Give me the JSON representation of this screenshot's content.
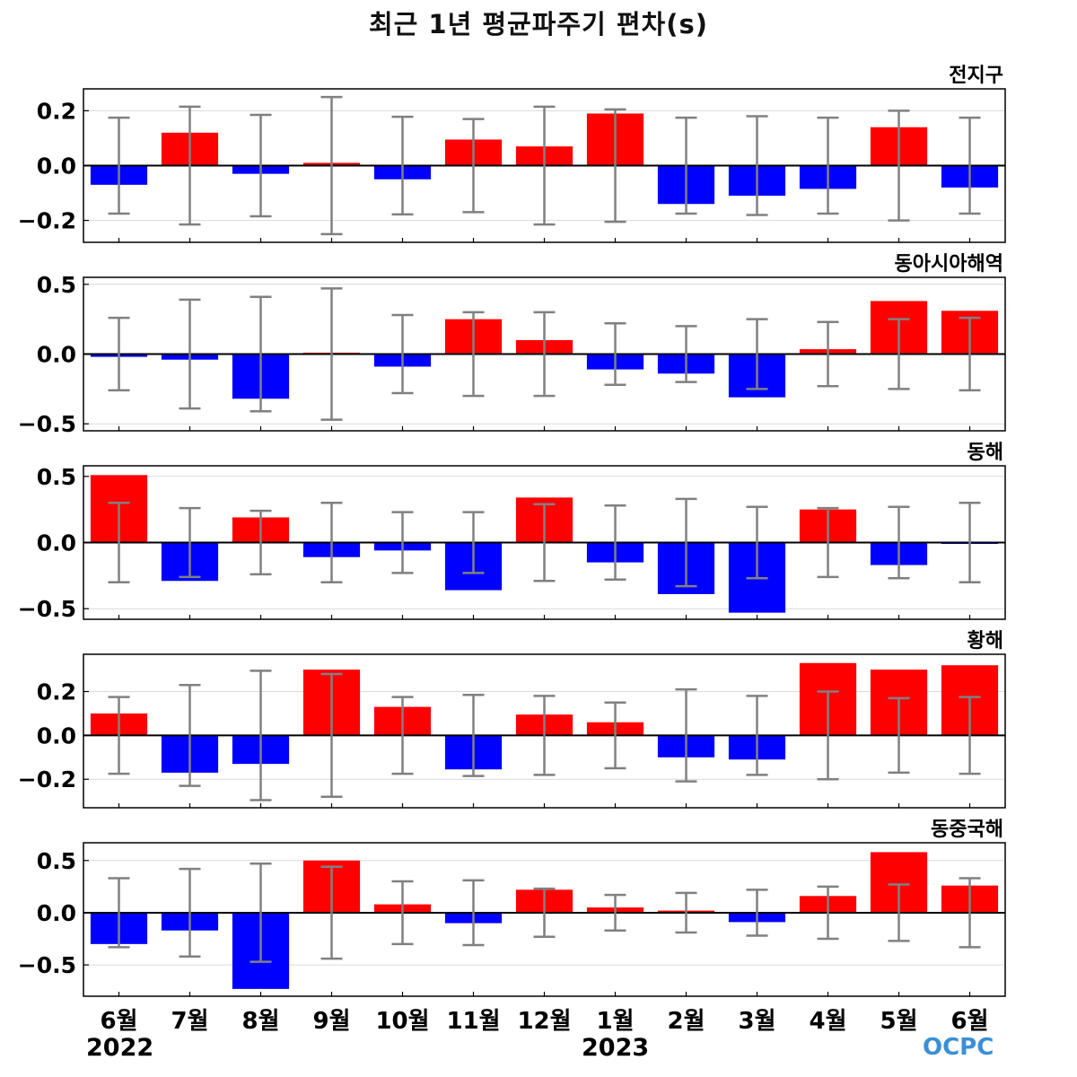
{
  "title": "최근 1년 평균파주기 편차(s)",
  "year_labels": [
    "2022",
    "2023"
  ],
  "logo_text": "OCPC",
  "colors": {
    "positive": "#ff0000",
    "negative": "#0000ff",
    "errorbar": "#808080",
    "grid": "#d9d9d9",
    "zero": "#000000"
  },
  "chart_data": [
    {
      "type": "bar",
      "title": "전지구",
      "categories": [
        "6월",
        "7월",
        "8월",
        "9월",
        "10월",
        "11월",
        "12월",
        "1월",
        "2월",
        "3월",
        "4월",
        "5월",
        "6월"
      ],
      "values": [
        -0.07,
        0.12,
        -0.03,
        0.01,
        -0.05,
        0.095,
        0.07,
        0.19,
        -0.14,
        -0.11,
        -0.085,
        0.14,
        -0.08
      ],
      "error": [
        0.175,
        0.215,
        0.185,
        0.25,
        0.178,
        0.17,
        0.215,
        0.205,
        0.175,
        0.18,
        0.175,
        0.2,
        0.175
      ],
      "ylim": [
        -0.28,
        0.28
      ],
      "yticks": [
        0.2,
        0.0,
        -0.2
      ],
      "yticklabels": [
        "0.2",
        "0.0",
        "−0.2"
      ]
    },
    {
      "type": "bar",
      "title": "동아시아해역",
      "categories": [
        "6월",
        "7월",
        "8월",
        "9월",
        "10월",
        "11월",
        "12월",
        "1월",
        "2월",
        "3월",
        "4월",
        "5월",
        "6월"
      ],
      "values": [
        -0.02,
        -0.04,
        -0.32,
        0.01,
        -0.09,
        0.25,
        0.1,
        -0.11,
        -0.14,
        -0.31,
        0.035,
        0.38,
        0.31
      ],
      "error": [
        0.26,
        0.39,
        0.41,
        0.47,
        0.28,
        0.3,
        0.3,
        0.22,
        0.2,
        0.25,
        0.23,
        0.25,
        0.26
      ],
      "ylim": [
        -0.55,
        0.55
      ],
      "yticks": [
        0.5,
        0.0,
        -0.5
      ],
      "yticklabels": [
        "0.5",
        "0.0",
        "−0.5"
      ]
    },
    {
      "type": "bar",
      "title": "동해",
      "categories": [
        "6월",
        "7월",
        "8월",
        "9월",
        "10월",
        "11월",
        "12월",
        "1월",
        "2월",
        "3월",
        "4월",
        "5월",
        "6월"
      ],
      "values": [
        0.51,
        -0.29,
        0.19,
        -0.11,
        -0.06,
        -0.36,
        0.34,
        -0.15,
        -0.39,
        -0.53,
        0.25,
        -0.17,
        -0.01
      ],
      "error": [
        0.3,
        0.26,
        0.24,
        0.3,
        0.23,
        0.23,
        0.29,
        0.28,
        0.33,
        0.27,
        0.26,
        0.27,
        0.3
      ],
      "ylim": [
        -0.58,
        0.58
      ],
      "yticks": [
        0.5,
        0.0,
        -0.5
      ],
      "yticklabels": [
        "0.5",
        "0.0",
        "−0.5"
      ]
    },
    {
      "type": "bar",
      "title": "황해",
      "categories": [
        "6월",
        "7월",
        "8월",
        "9월",
        "10월",
        "11월",
        "12월",
        "1월",
        "2월",
        "3월",
        "4월",
        "5월",
        "6월"
      ],
      "values": [
        0.1,
        -0.17,
        -0.13,
        0.3,
        0.13,
        -0.155,
        0.095,
        0.06,
        -0.1,
        -0.11,
        0.33,
        0.3,
        0.32
      ],
      "error": [
        0.175,
        0.23,
        0.295,
        0.28,
        0.175,
        0.185,
        0.18,
        0.15,
        0.21,
        0.18,
        0.2,
        0.17,
        0.175
      ],
      "ylim": [
        -0.33,
        0.37
      ],
      "yticks": [
        0.2,
        0.0,
        -0.2
      ],
      "yticklabels": [
        "0.2",
        "0.0",
        "−0.2"
      ]
    },
    {
      "type": "bar",
      "title": "동중국해",
      "categories": [
        "6월",
        "7월",
        "8월",
        "9월",
        "10월",
        "11월",
        "12월",
        "1월",
        "2월",
        "3월",
        "4월",
        "5월",
        "6월"
      ],
      "values": [
        -0.3,
        -0.17,
        -0.73,
        0.5,
        0.08,
        -0.1,
        0.22,
        0.05,
        0.02,
        -0.09,
        0.16,
        0.58,
        0.26
      ],
      "error": [
        0.33,
        0.42,
        0.47,
        0.44,
        0.3,
        0.31,
        0.23,
        0.17,
        0.19,
        0.22,
        0.25,
        0.27,
        0.33
      ],
      "ylim": [
        -0.8,
        0.67
      ],
      "yticks": [
        0.5,
        0.0,
        -0.5
      ],
      "yticklabels": [
        "0.5",
        "0.0",
        "−0.5"
      ]
    }
  ]
}
